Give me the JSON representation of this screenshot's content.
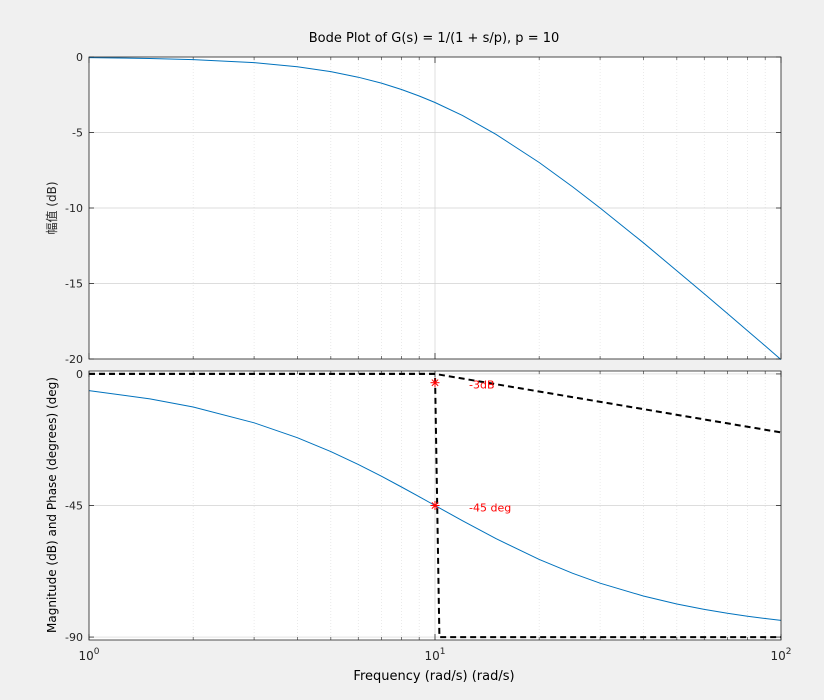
{
  "figure": {
    "title": "Bode Plot of G(s) = 1/(1 + s/p), p = 10",
    "xlabel": "Frequency (rad/s)  (rad/s)",
    "ylabel_bottom": "Magnitude (dB) and Phase (degrees) (deg)",
    "ylabel_top": "幅值 (dB)",
    "background": "#f0f0f0",
    "line_color": "#0072bd",
    "marker_color": "#ff0000"
  },
  "chart_data": [
    {
      "type": "line",
      "title": "Bode Plot of G(s) = 1/(1 + s/p), p = 10",
      "xlabel": "",
      "ylabel": "幅值 (dB)",
      "xscale": "log",
      "xlim": [
        1,
        100
      ],
      "ylim": [
        -20,
        0
      ],
      "grid": true,
      "minor_grid": true,
      "yticks": [
        0,
        -5,
        -10,
        -15,
        -20
      ],
      "x": [
        1,
        1.5,
        2,
        3,
        4,
        5,
        6,
        7,
        8,
        9,
        10,
        12,
        15,
        20,
        25,
        30,
        40,
        50,
        60,
        70,
        80,
        90,
        100
      ],
      "series": [
        {
          "values": [
            -0.04,
            -0.1,
            -0.17,
            -0.37,
            -0.64,
            -0.97,
            -1.34,
            -1.73,
            -2.15,
            -2.58,
            -3.01,
            -3.87,
            -5.12,
            -6.99,
            -8.6,
            -10.0,
            -12.3,
            -14.15,
            -15.68,
            -16.99,
            -18.13,
            -19.13,
            -20.04
          ]
        }
      ]
    },
    {
      "type": "line",
      "title": "",
      "xlabel": "Frequency (rad/s)  (rad/s)",
      "ylabel": "Magnitude (dB) and Phase (degrees) (deg)",
      "xscale": "log",
      "xlim": [
        1,
        100
      ],
      "ylim": [
        -91,
        1
      ],
      "grid": true,
      "minor_grid": true,
      "yticks": [
        0,
        -45,
        -90
      ],
      "xticks": [
        1,
        10,
        100
      ],
      "xtick_labels": [
        "10^0",
        "10^1",
        "10^2"
      ],
      "x": [
        1,
        1.5,
        2,
        3,
        4,
        5,
        6,
        7,
        8,
        9,
        10,
        12,
        15,
        20,
        25,
        30,
        40,
        50,
        60,
        70,
        80,
        90,
        100
      ],
      "series": [
        {
          "values": [
            -5.71,
            -8.53,
            -11.31,
            -16.7,
            -21.8,
            -26.57,
            -30.96,
            -34.99,
            -38.66,
            -41.99,
            -45.0,
            -50.19,
            -56.31,
            -63.43,
            -68.2,
            -71.57,
            -75.96,
            -78.69,
            -80.54,
            -81.87,
            -82.87,
            -83.66,
            -84.29
          ]
        }
      ],
      "asymptotes": [
        {
          "style": "dashed",
          "points": [
            [
              1,
              0
            ],
            [
              10,
              0
            ],
            [
              100,
              -20
            ]
          ]
        },
        {
          "style": "dashed",
          "points": [
            [
              1,
              0
            ],
            [
              10,
              0
            ],
            [
              10.3,
              -90
            ],
            [
              100,
              -90
            ]
          ]
        }
      ],
      "annotations": [
        {
          "x": 10,
          "y": -3,
          "marker": "*",
          "label": "-3dB"
        },
        {
          "x": 10,
          "y": -45,
          "marker": "*",
          "label": "-45 deg"
        }
      ]
    }
  ]
}
